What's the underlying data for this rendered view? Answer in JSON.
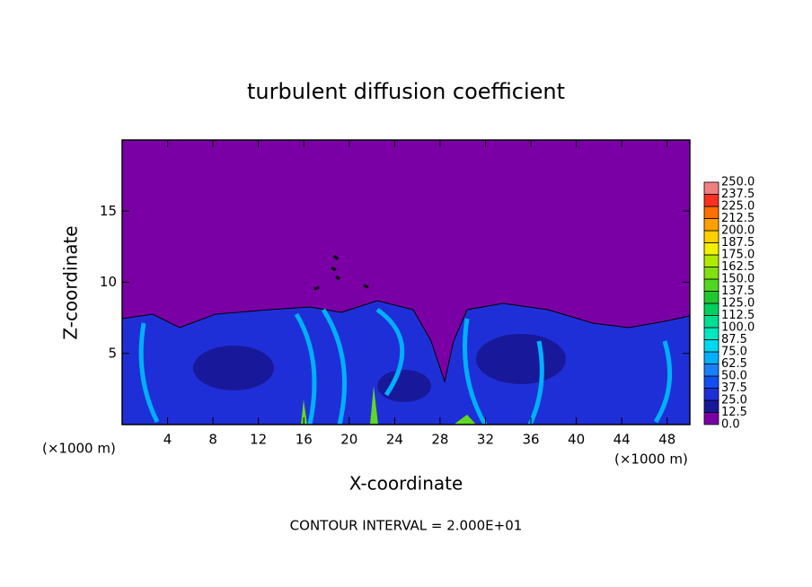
{
  "chart_data": {
    "type": "contour",
    "title": "turbulent diffusion coefficient",
    "x_label": "X-coordinate",
    "y_label": "Z-coordinate",
    "x_unit": "(×1000 m)",
    "note": "CONTOUR INTERVAL = 2.000E+01",
    "xlim": [
      0,
      50
    ],
    "xticks": [
      4,
      8,
      12,
      16,
      20,
      24,
      28,
      32,
      36,
      40,
      44,
      48
    ],
    "ylim": [
      0,
      20
    ],
    "yticks": [
      5,
      10,
      15
    ],
    "grid": false,
    "colorbar": {
      "levels": [
        {
          "value": 0,
          "label": "0.0"
        },
        {
          "value": 12.5,
          "label": "12.5"
        },
        {
          "value": 25,
          "label": "25.0"
        },
        {
          "value": 37.5,
          "label": "37.5"
        },
        {
          "value": 50,
          "label": "50.0"
        },
        {
          "value": 62.5,
          "label": "62.5"
        },
        {
          "value": 75,
          "label": "75.0"
        },
        {
          "value": 87.5,
          "label": "87.5"
        },
        {
          "value": 100,
          "label": "100.0"
        },
        {
          "value": 112.5,
          "label": "112.5"
        },
        {
          "value": 125,
          "label": "125.0"
        },
        {
          "value": 137.5,
          "label": "137.5"
        },
        {
          "value": 150,
          "label": "150.0"
        },
        {
          "value": 162.5,
          "label": "162.5"
        },
        {
          "value": 175,
          "label": "175.0"
        },
        {
          "value": 187.5,
          "label": "187.5"
        },
        {
          "value": 200,
          "label": "200.0"
        },
        {
          "value": 212.5,
          "label": "212.5"
        },
        {
          "value": 225,
          "label": "225.0"
        },
        {
          "value": 237.5,
          "label": "237.5"
        },
        {
          "value": 250,
          "label": "250.0"
        }
      ],
      "colors": [
        "#7a00a5",
        "#18189a",
        "#1f2fd8",
        "#1050f0",
        "#1880ff",
        "#00b0ff",
        "#00d8f0",
        "#00e8c0",
        "#00e090",
        "#00d060",
        "#20c830",
        "#50d820",
        "#80e010",
        "#b0ea00",
        "#f0f000",
        "#ffd000",
        "#ffa000",
        "#ff7000",
        "#ff3020",
        "#f08080"
      ]
    }
  }
}
